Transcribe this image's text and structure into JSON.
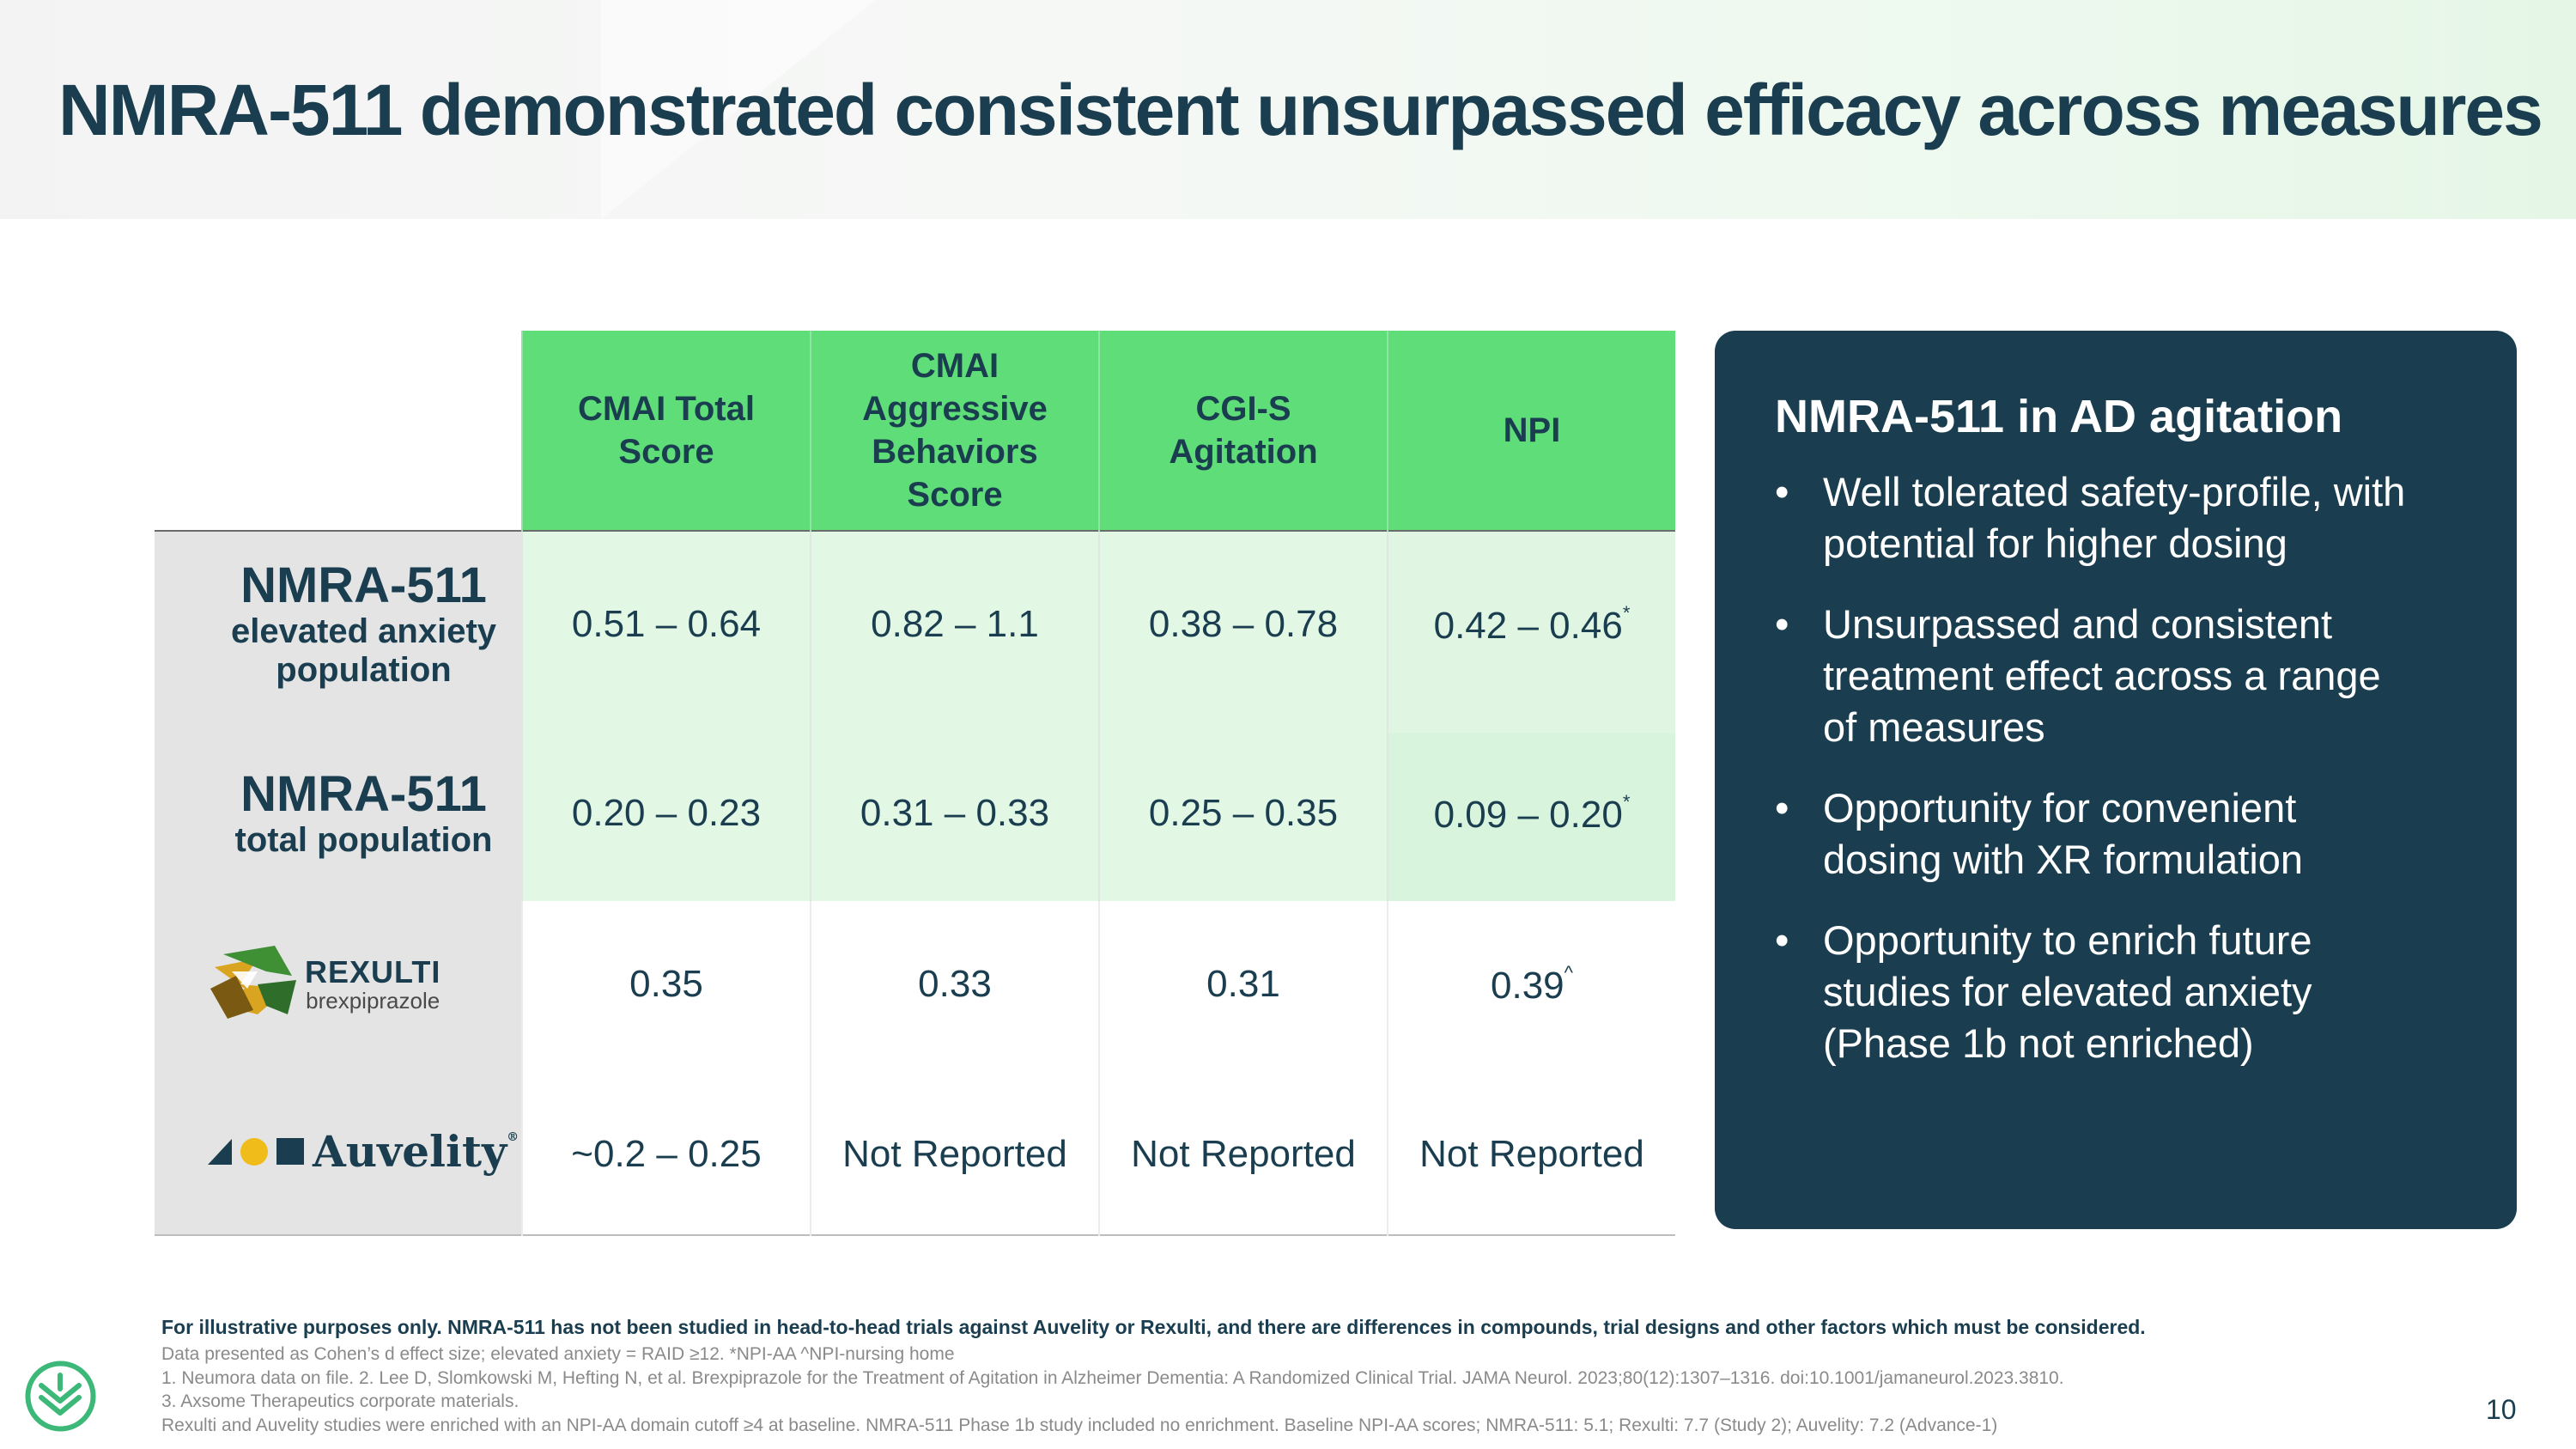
{
  "slide": {
    "title": "NMRA-511 demonstrated consistent unsurpassed efficacy across measures",
    "page_number": "10"
  },
  "table": {
    "columns": [
      {
        "lines": [
          "CMAI Total",
          "Score"
        ]
      },
      {
        "lines": [
          "CMAI",
          "Aggressive",
          "Behaviors",
          "Score"
        ]
      },
      {
        "lines": [
          "CGI-S",
          "Agitation"
        ]
      },
      {
        "lines": [
          "NPI"
        ]
      }
    ],
    "rows": [
      {
        "label_main": "NMRA-511",
        "label_sub": [
          "elevated anxiety",
          "population"
        ],
        "values": [
          "0.51 – 0.64",
          "0.82 – 1.1",
          "0.38 – 0.78",
          "0.42 – 0.46"
        ],
        "npi_mark": "*"
      },
      {
        "label_main": "NMRA-511",
        "label_sub": [
          "total population"
        ],
        "values": [
          "0.20 – 0.23",
          "0.31 – 0.33",
          "0.25 – 0.35",
          "0.09 – 0.20"
        ],
        "npi_mark": "*"
      },
      {
        "logo": {
          "name": "REXULTI",
          "generic": "brexpiprazole"
        },
        "values": [
          "0.35",
          "0.33",
          "0.31",
          "0.39"
        ],
        "npi_mark": "^"
      },
      {
        "logo": {
          "name": "Auvelity",
          "mark": "®"
        },
        "values": [
          "~0.2 – 0.25",
          "Not Reported",
          "Not Reported",
          "Not Reported"
        ]
      }
    ]
  },
  "panel": {
    "title": "NMRA-511 in AD agitation",
    "bullet_glyph": "•",
    "bullets": [
      [
        "Well tolerated safety-profile, with",
        "potential for higher dosing"
      ],
      [
        "Unsurpassed and consistent",
        "treatment effect across a range",
        "of measures"
      ],
      [
        "Opportunity for convenient",
        "dosing with XR formulation"
      ],
      [
        "Opportunity to enrich future",
        "studies for elevated anxiety",
        "(Phase 1b not enriched)"
      ]
    ]
  },
  "footer": {
    "disclaimer": "For illustrative purposes only. NMRA-511 has not been studied in head-to-head trials against Auvelity or Rexulti, and there are differences in compounds, trial designs and other factors which must be considered.",
    "notes": [
      "Data presented as Cohen’s d effect size; elevated anxiety = RAID ≥12. *NPI-AA ^NPI-nursing home",
      "1. Neumora data on file. 2. Lee D, Slomkowski M, Hefting N, et al. Brexpiprazole for the Treatment of Agitation in Alzheimer Dementia: A Randomized Clinical Trial. JAMA Neurol. 2023;80(12):1307–1316. doi:10.1001/jamaneurol.2023.3810.",
      "3. Axsome Therapeutics corporate materials.",
      "Rexulti and Auvelity studies were enriched with an NPI-AA domain cutoff ≥4 at baseline. NMRA-511 Phase 1b study included no enrichment. Baseline NPI-AA scores; NMRA-511: 5.1; Rexulti: 7.7 (Study 2); Auvelity: 7.2 (Advance-1)"
    ]
  },
  "colors": {
    "navy": "#1a3e4f",
    "header_green": "#5fdd79",
    "cell_green": "#e3f7e5",
    "row_label_gray": "#e4e4e4",
    "corporate_green": "#3cb878"
  },
  "icons": {
    "rexulti_logo": "rexulti-logo-icon",
    "auvelity_logo": "auvelity-logo-icon",
    "company_logo": "neumora-logo-icon"
  }
}
